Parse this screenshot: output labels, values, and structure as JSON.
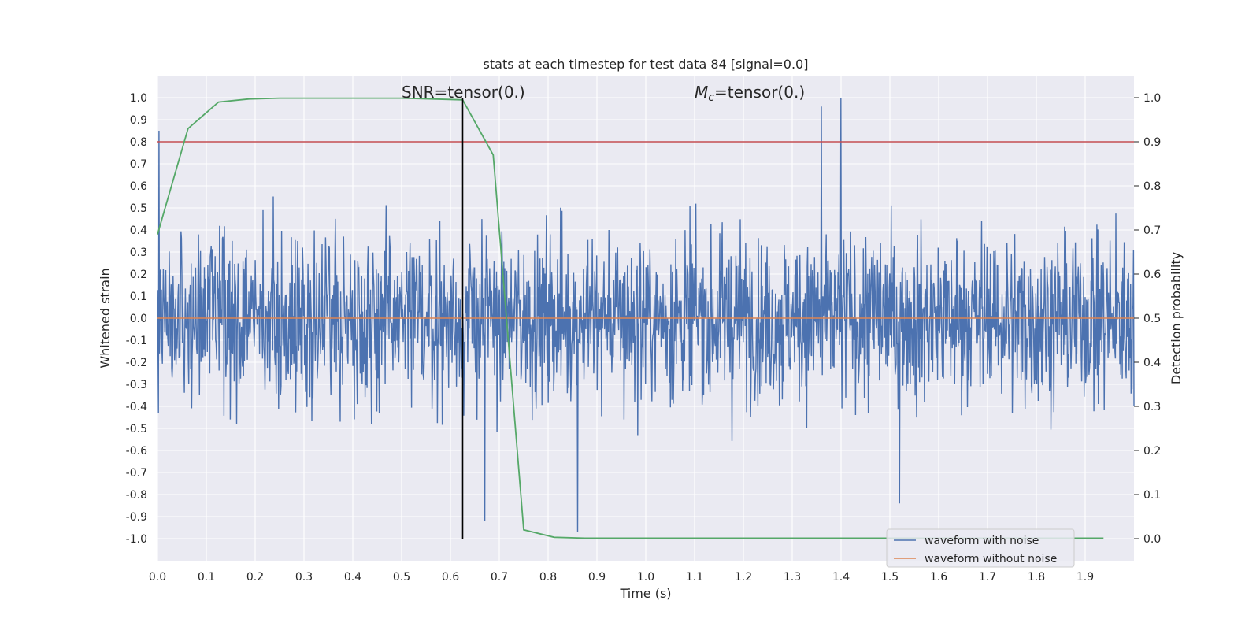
{
  "chart_data": {
    "type": "line",
    "title": "stats at each timestep for test data 84 [signal=0.0]",
    "xlabel": "Time (s)",
    "ylabel": "Whitened strain",
    "y2label": "Detection probability",
    "xlim": [
      0.0,
      2.0
    ],
    "ylim": [
      -1.1,
      1.1
    ],
    "y2lim": [
      -0.05,
      1.05
    ],
    "xticks": [
      0.0,
      0.1,
      0.2,
      0.3,
      0.4,
      0.5,
      0.6,
      0.7,
      0.8,
      0.9,
      1.0,
      1.1,
      1.2,
      1.3,
      1.4,
      1.5,
      1.6,
      1.7,
      1.8,
      1.9
    ],
    "xtick_labels": [
      "0.0",
      "0.1",
      "0.2",
      "0.3",
      "0.4",
      "0.5",
      "0.6",
      "0.7",
      "0.8",
      "0.9",
      "1.0",
      "1.1",
      "1.2",
      "1.3",
      "1.4",
      "1.5",
      "1.6",
      "1.7",
      "1.8",
      "1.9"
    ],
    "yticks": [
      1.0,
      0.9,
      0.8,
      0.7,
      0.6,
      0.5,
      0.4,
      0.3,
      0.2,
      0.1,
      0.0,
      -0.1,
      -0.2,
      -0.3,
      -0.4,
      -0.5,
      -0.6,
      -0.7,
      -0.8,
      -0.9,
      -1.0
    ],
    "ytick_labels": [
      "1.0",
      "0.9",
      "0.8",
      "0.7",
      "0.6",
      "0.5",
      "0.4",
      "0.3",
      "0.2",
      "0.1",
      "0.0",
      "-0.1",
      "-0.2",
      "-0.3",
      "-0.4",
      "-0.5",
      "-0.6",
      "-0.7",
      "-0.8",
      "-0.9",
      "-1.0"
    ],
    "y2ticks": [
      1.0,
      0.9,
      0.8,
      0.7,
      0.6,
      0.5,
      0.4,
      0.3,
      0.2,
      0.1,
      0.0
    ],
    "y2tick_labels": [
      "1.0",
      "0.9",
      "0.8",
      "0.7",
      "0.6",
      "0.5",
      "0.4",
      "0.3",
      "0.2",
      "0.1",
      "0.0"
    ],
    "grid": true,
    "legend_position": "lower-right",
    "annotations": {
      "snr": "SNR=tensor(0.)",
      "mc_symbol": "M",
      "mc_subscript": "c",
      "mc_value": "=tensor(0.)"
    },
    "series": [
      {
        "name": "waveform with noise",
        "axis": "left",
        "color": "#4c72b0",
        "style": "noise",
        "x_range": [
          0.0,
          2.0
        ],
        "y_range": [
          -0.97,
          1.0
        ],
        "notable_peaks": [
          {
            "x": 0.003,
            "y": 0.85
          },
          {
            "x": 1.36,
            "y": 0.96
          },
          {
            "x": 1.4,
            "y": 1.0
          },
          {
            "x": 0.86,
            "y": -0.97
          },
          {
            "x": 0.67,
            "y": -0.92
          },
          {
            "x": 1.52,
            "y": -0.84
          }
        ]
      },
      {
        "name": "waveform without noise",
        "axis": "left",
        "color": "#dd8452",
        "x": [
          0.0,
          2.0
        ],
        "y": [
          0.0,
          0.0
        ]
      },
      {
        "name": "",
        "axis": "right",
        "color": "#55a868",
        "x": [
          0.0,
          0.0625,
          0.125,
          0.1875,
          0.25,
          0.3125,
          0.375,
          0.4375,
          0.5,
          0.5625,
          0.625,
          0.6875,
          0.75,
          0.8125,
          0.875,
          0.9375,
          1.0,
          1.0625,
          1.125,
          1.1875,
          1.25,
          1.3125,
          1.375,
          1.4375,
          1.5,
          1.5625,
          1.625,
          1.6875,
          1.75,
          1.8125,
          1.875,
          1.9375
        ],
        "y": [
          0.69,
          0.93,
          0.99,
          0.997,
          0.999,
          0.999,
          0.999,
          0.999,
          0.999,
          0.997,
          0.995,
          0.87,
          0.02,
          0.003,
          0.001,
          0.001,
          0.001,
          0.001,
          0.001,
          0.001,
          0.001,
          0.001,
          0.001,
          0.001,
          0.001,
          0.001,
          0.001,
          0.001,
          0.001,
          0.001,
          0.001,
          0.001
        ]
      }
    ],
    "threshold": {
      "axis": "right",
      "y": 0.9,
      "color": "#c44e52"
    },
    "marker_line": {
      "x": 0.625,
      "color": "#000000"
    }
  }
}
